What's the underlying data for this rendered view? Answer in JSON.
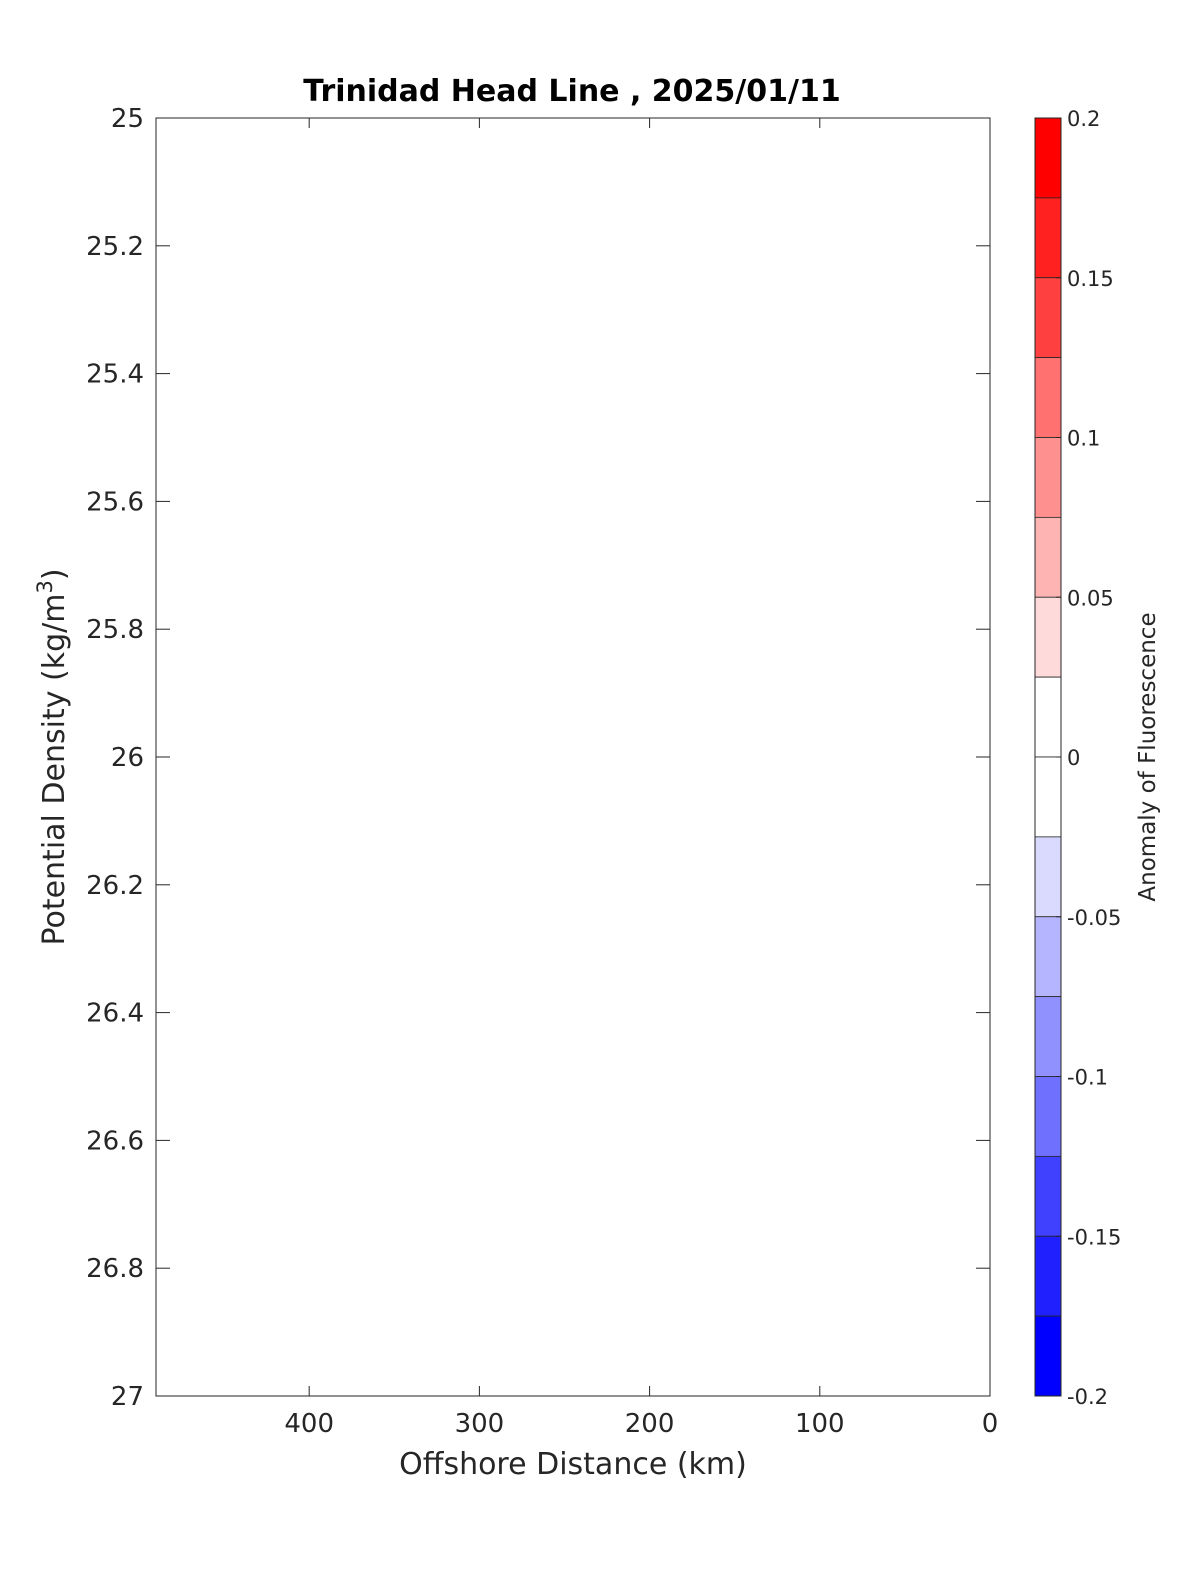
{
  "chart_data": {
    "type": "heatmap",
    "title": "Trinidad Head Line , 2025/01/11",
    "xlabel": "Offshore Distance (km)",
    "ylabel": "Potential Density (kg/m",
    "ylabel_superscript": "3",
    "ylabel_suffix": ")",
    "xlim": [
      490,
      0
    ],
    "x_reversed": true,
    "x_ticks": [
      400,
      300,
      200,
      100,
      0
    ],
    "x_tick_labels": [
      "400",
      "300",
      "200",
      "100",
      "0"
    ],
    "ylim": [
      25,
      27
    ],
    "y_reversed": true,
    "y_ticks": [
      25,
      25.2,
      25.4,
      25.6,
      25.8,
      26,
      26.2,
      26.4,
      26.6,
      26.8,
      27
    ],
    "y_tick_labels": [
      "25",
      "25.2",
      "25.4",
      "25.6",
      "25.8",
      "26",
      "26.2",
      "26.4",
      "26.6",
      "26.8",
      "27"
    ],
    "values": [],
    "grid": false,
    "colorbar": {
      "label": "Anomaly of Fluorescence",
      "range": [
        -0.2,
        0.2
      ],
      "ticks": [
        0.2,
        0.15,
        0.1,
        0.05,
        0,
        -0.05,
        -0.1,
        -0.15,
        -0.2
      ],
      "tick_labels": [
        "0.2",
        "0.15",
        "0.1",
        "0.05",
        "0",
        "-0.05",
        "-0.1",
        "-0.15",
        "-0.2"
      ],
      "bins": [
        {
          "from": 0.175,
          "to": 0.2,
          "color": "#ff0000"
        },
        {
          "from": 0.15,
          "to": 0.175,
          "color": "#ff2020"
        },
        {
          "from": 0.125,
          "to": 0.15,
          "color": "#ff4040"
        },
        {
          "from": 0.1,
          "to": 0.125,
          "color": "#ff7070"
        },
        {
          "from": 0.075,
          "to": 0.1,
          "color": "#ff9090"
        },
        {
          "from": 0.05,
          "to": 0.075,
          "color": "#ffb4b4"
        },
        {
          "from": 0.025,
          "to": 0.05,
          "color": "#ffdada"
        },
        {
          "from": 0,
          "to": 0.025,
          "color": "#ffffff"
        },
        {
          "from": -0.025,
          "to": 0,
          "color": "#ffffff"
        },
        {
          "from": -0.05,
          "to": -0.025,
          "color": "#dadaff"
        },
        {
          "from": -0.075,
          "to": -0.05,
          "color": "#b4b4ff"
        },
        {
          "from": -0.1,
          "to": -0.075,
          "color": "#9090ff"
        },
        {
          "from": -0.125,
          "to": -0.1,
          "color": "#7070ff"
        },
        {
          "from": -0.15,
          "to": -0.125,
          "color": "#4040ff"
        },
        {
          "from": -0.175,
          "to": -0.15,
          "color": "#2020ff"
        },
        {
          "from": -0.2,
          "to": -0.175,
          "color": "#0000ff"
        }
      ]
    }
  }
}
